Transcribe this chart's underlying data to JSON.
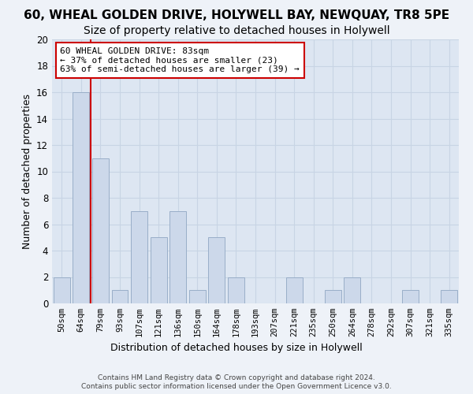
{
  "title1": "60, WHEAL GOLDEN DRIVE, HOLYWELL BAY, NEWQUAY, TR8 5PE",
  "title2": "Size of property relative to detached houses in Holywell",
  "xlabel": "Distribution of detached houses by size in Holywell",
  "ylabel": "Number of detached properties",
  "categories": [
    "50sqm",
    "64sqm",
    "79sqm",
    "93sqm",
    "107sqm",
    "121sqm",
    "136sqm",
    "150sqm",
    "164sqm",
    "178sqm",
    "193sqm",
    "207sqm",
    "221sqm",
    "235sqm",
    "250sqm",
    "264sqm",
    "278sqm",
    "292sqm",
    "307sqm",
    "321sqm",
    "335sqm"
  ],
  "values": [
    2,
    16,
    11,
    1,
    7,
    5,
    7,
    1,
    5,
    2,
    0,
    0,
    2,
    0,
    1,
    2,
    0,
    0,
    1,
    0,
    1
  ],
  "bar_color": "#ccd8ea",
  "bar_edge_color": "#99aec8",
  "vline_x": 1.5,
  "vline_color": "#cc0000",
  "annotation_title": "60 WHEAL GOLDEN DRIVE: 83sqm",
  "annotation_line1": "← 37% of detached houses are smaller (23)",
  "annotation_line2": "63% of semi-detached houses are larger (39) →",
  "annotation_box_facecolor": "#ffffff",
  "annotation_box_edgecolor": "#cc0000",
  "ylim_max": 20,
  "yticks": [
    0,
    2,
    4,
    6,
    8,
    10,
    12,
    14,
    16,
    18,
    20
  ],
  "grid_color": "#c8d4e4",
  "plot_bg_color": "#dde6f2",
  "fig_bg_color": "#eef2f8",
  "footer1": "Contains HM Land Registry data © Crown copyright and database right 2024.",
  "footer2": "Contains public sector information licensed under the Open Government Licence v3.0.",
  "title1_fontsize": 11,
  "title2_fontsize": 10,
  "tick_fontsize": 7.5,
  "ylabel_fontsize": 9,
  "xlabel_fontsize": 9,
  "annotation_fontsize": 8,
  "footer_fontsize": 6.5
}
